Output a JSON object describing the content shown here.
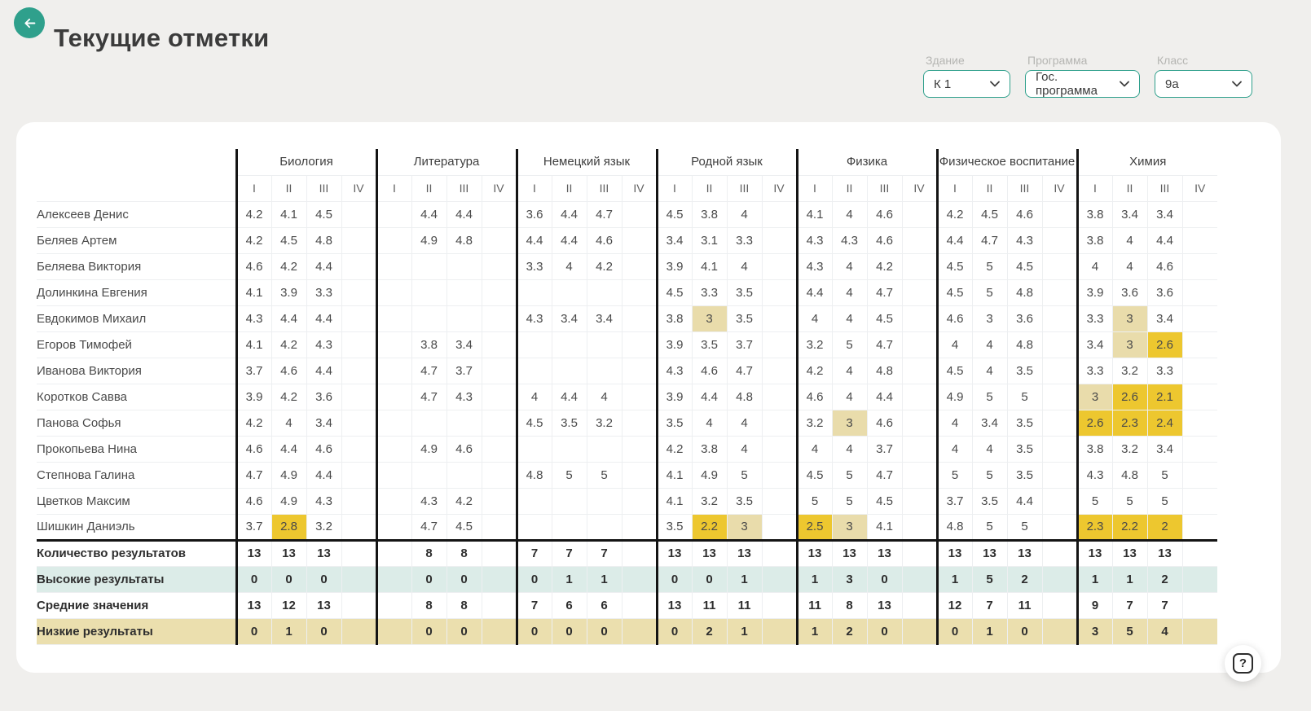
{
  "page": {
    "title": "Текущие отметки",
    "help_label": "?"
  },
  "colors": {
    "accent": "#2fa08c",
    "highlight_low": "#edc72f",
    "highlight_warn": "#e9dcab",
    "summary_high_bg": "#dcece8",
    "summary_low_bg": "#ebdfae"
  },
  "filters": {
    "building": {
      "label": "Здание",
      "value": "К 1"
    },
    "program": {
      "label": "Программа",
      "value": "Гос. программа"
    },
    "class": {
      "label": "Класс",
      "value": "9а"
    }
  },
  "table": {
    "quarters": [
      "I",
      "II",
      "III",
      "IV"
    ],
    "subjects": [
      "Биология",
      "Литература",
      "Немецкий язык",
      "Родной язык",
      "Физика",
      "Физическое воспитание",
      "Химия"
    ],
    "students": [
      {
        "name": "Алексеев Денис",
        "grades": [
          [
            "4.2",
            "4.1",
            "4.5",
            ""
          ],
          [
            "",
            "4.4",
            "4.4",
            ""
          ],
          [
            "3.6",
            "4.4",
            "4.7",
            ""
          ],
          [
            "4.5",
            "3.8",
            "4",
            ""
          ],
          [
            "4.1",
            "4",
            "4.6",
            ""
          ],
          [
            "4.2",
            "4.5",
            "4.6",
            ""
          ],
          [
            "3.8",
            "3.4",
            "3.4",
            ""
          ]
        ]
      },
      {
        "name": "Беляев Артем",
        "grades": [
          [
            "4.2",
            "4.5",
            "4.8",
            ""
          ],
          [
            "",
            "4.9",
            "4.8",
            ""
          ],
          [
            "4.4",
            "4.4",
            "4.6",
            ""
          ],
          [
            "3.4",
            "3.1",
            "3.3",
            ""
          ],
          [
            "4.3",
            "4.3",
            "4.6",
            ""
          ],
          [
            "4.4",
            "4.7",
            "4.3",
            ""
          ],
          [
            "3.8",
            "4",
            "4.4",
            ""
          ]
        ]
      },
      {
        "name": "Беляева Виктория",
        "grades": [
          [
            "4.6",
            "4.2",
            "4.4",
            ""
          ],
          [
            "",
            "",
            "",
            ""
          ],
          [
            "3.3",
            "4",
            "4.2",
            ""
          ],
          [
            "3.9",
            "4.1",
            "4",
            ""
          ],
          [
            "4.3",
            "4",
            "4.2",
            ""
          ],
          [
            "4.5",
            "5",
            "4.5",
            ""
          ],
          [
            "4",
            "4",
            "4.6",
            ""
          ]
        ]
      },
      {
        "name": "Долинкина Евгения",
        "grades": [
          [
            "4.1",
            "3.9",
            "3.3",
            ""
          ],
          [
            "",
            "",
            "",
            ""
          ],
          [
            "",
            "",
            "",
            ""
          ],
          [
            "4.5",
            "3.3",
            "3.5",
            ""
          ],
          [
            "4.4",
            "4",
            "4.7",
            ""
          ],
          [
            "4.5",
            "5",
            "4.8",
            ""
          ],
          [
            "3.9",
            "3.6",
            "3.6",
            ""
          ]
        ]
      },
      {
        "name": "Евдокимов Михаил",
        "grades": [
          [
            "4.3",
            "4.4",
            "4.4",
            ""
          ],
          [
            "",
            "",
            "",
            ""
          ],
          [
            "4.3",
            "3.4",
            "3.4",
            ""
          ],
          [
            "3.8",
            {
              "v": "3",
              "hl": "warn"
            },
            "3.5",
            ""
          ],
          [
            "4",
            "4",
            "4.5",
            ""
          ],
          [
            "4.6",
            "3",
            "3.6",
            ""
          ],
          [
            "3.3",
            {
              "v": "3",
              "hl": "warn"
            },
            "3.4",
            ""
          ]
        ]
      },
      {
        "name": "Егоров Тимофей",
        "grades": [
          [
            "4.1",
            "4.2",
            "4.3",
            ""
          ],
          [
            "",
            "3.8",
            "3.4",
            ""
          ],
          [
            "",
            "",
            "",
            ""
          ],
          [
            "3.9",
            "3.5",
            "3.7",
            ""
          ],
          [
            "3.2",
            "5",
            "4.7",
            ""
          ],
          [
            "4",
            "4",
            "4.8",
            ""
          ],
          [
            "3.4",
            {
              "v": "3",
              "hl": "warn"
            },
            {
              "v": "2.6",
              "hl": "low"
            },
            ""
          ]
        ]
      },
      {
        "name": "Иванова Виктория",
        "grades": [
          [
            "3.7",
            "4.6",
            "4.4",
            ""
          ],
          [
            "",
            "4.7",
            "3.7",
            ""
          ],
          [
            "",
            "",
            "",
            ""
          ],
          [
            "4.3",
            "4.6",
            "4.7",
            ""
          ],
          [
            "4.2",
            "4",
            "4.8",
            ""
          ],
          [
            "4.5",
            "4",
            "3.5",
            ""
          ],
          [
            "3.3",
            "3.2",
            "3.3",
            ""
          ]
        ]
      },
      {
        "name": "Коротков Савва",
        "grades": [
          [
            "3.9",
            "4.2",
            "3.6",
            ""
          ],
          [
            "",
            "4.7",
            "4.3",
            ""
          ],
          [
            "4",
            "4.4",
            "4",
            ""
          ],
          [
            "3.9",
            "4.4",
            "4.8",
            ""
          ],
          [
            "4.6",
            "4",
            "4.4",
            ""
          ],
          [
            "4.9",
            "5",
            "5",
            ""
          ],
          [
            {
              "v": "3",
              "hl": "warn"
            },
            {
              "v": "2.6",
              "hl": "low"
            },
            {
              "v": "2.1",
              "hl": "low"
            },
            ""
          ]
        ]
      },
      {
        "name": "Панова Софья",
        "grades": [
          [
            "4.2",
            "4",
            "3.4",
            ""
          ],
          [
            "",
            "",
            "",
            ""
          ],
          [
            "4.5",
            "3.5",
            "3.2",
            ""
          ],
          [
            "3.5",
            "4",
            "4",
            ""
          ],
          [
            "3.2",
            {
              "v": "3",
              "hl": "warn"
            },
            "4.6",
            ""
          ],
          [
            "4",
            "3.4",
            "3.5",
            ""
          ],
          [
            {
              "v": "2.6",
              "hl": "low"
            },
            {
              "v": "2.3",
              "hl": "low"
            },
            {
              "v": "2.4",
              "hl": "low"
            },
            ""
          ]
        ]
      },
      {
        "name": "Прокопьева Нина",
        "grades": [
          [
            "4.6",
            "4.4",
            "4.6",
            ""
          ],
          [
            "",
            "4.9",
            "4.6",
            ""
          ],
          [
            "",
            "",
            "",
            ""
          ],
          [
            "4.2",
            "3.8",
            "4",
            ""
          ],
          [
            "4",
            "4",
            "3.7",
            ""
          ],
          [
            "4",
            "4",
            "3.5",
            ""
          ],
          [
            "3.8",
            "3.2",
            "3.4",
            ""
          ]
        ]
      },
      {
        "name": "Степнова Галина",
        "grades": [
          [
            "4.7",
            "4.9",
            "4.4",
            ""
          ],
          [
            "",
            "",
            "",
            ""
          ],
          [
            "4.8",
            "5",
            "5",
            ""
          ],
          [
            "4.1",
            "4.9",
            "5",
            ""
          ],
          [
            "4.5",
            "5",
            "4.7",
            ""
          ],
          [
            "5",
            "5",
            "3.5",
            ""
          ],
          [
            "4.3",
            "4.8",
            "5",
            ""
          ]
        ]
      },
      {
        "name": "Цветков Максим",
        "grades": [
          [
            "4.6",
            "4.9",
            "4.3",
            ""
          ],
          [
            "",
            "4.3",
            "4.2",
            ""
          ],
          [
            "",
            "",
            "",
            ""
          ],
          [
            "4.1",
            "3.2",
            "3.5",
            ""
          ],
          [
            "5",
            "5",
            "4.5",
            ""
          ],
          [
            "3.7",
            "3.5",
            "4.4",
            ""
          ],
          [
            "5",
            "5",
            "5",
            ""
          ]
        ]
      },
      {
        "name": "Шишкин Даниэль",
        "grades": [
          [
            "3.7",
            {
              "v": "2.8",
              "hl": "low"
            },
            "3.2",
            ""
          ],
          [
            "",
            "4.7",
            "4.5",
            ""
          ],
          [
            "",
            "",
            "",
            ""
          ],
          [
            "3.5",
            {
              "v": "2.2",
              "hl": "low"
            },
            {
              "v": "3",
              "hl": "warn"
            },
            ""
          ],
          [
            {
              "v": "2.5",
              "hl": "low"
            },
            {
              "v": "3",
              "hl": "warn"
            },
            "4.1",
            ""
          ],
          [
            "4.8",
            "5",
            "5",
            ""
          ],
          [
            {
              "v": "2.3",
              "hl": "low"
            },
            {
              "v": "2.2",
              "hl": "low"
            },
            {
              "v": "2",
              "hl": "low"
            },
            ""
          ]
        ]
      }
    ],
    "summary": [
      {
        "label": "Количество результатов",
        "style": "plain",
        "values": [
          [
            "13",
            "13",
            "13",
            ""
          ],
          [
            "",
            "8",
            "8",
            ""
          ],
          [
            "7",
            "7",
            "7",
            ""
          ],
          [
            "13",
            "13",
            "13",
            ""
          ],
          [
            "13",
            "13",
            "13",
            ""
          ],
          [
            "13",
            "13",
            "13",
            ""
          ],
          [
            "13",
            "13",
            "13",
            ""
          ]
        ]
      },
      {
        "label": "Высокие результаты",
        "style": "high",
        "values": [
          [
            "0",
            "0",
            "0",
            ""
          ],
          [
            "",
            "0",
            "0",
            ""
          ],
          [
            "0",
            "1",
            "1",
            ""
          ],
          [
            "0",
            "0",
            "1",
            ""
          ],
          [
            "1",
            "3",
            "0",
            ""
          ],
          [
            "1",
            "5",
            "2",
            ""
          ],
          [
            "1",
            "1",
            "2",
            ""
          ]
        ]
      },
      {
        "label": "Средние значения",
        "style": "plain",
        "values": [
          [
            "13",
            "12",
            "13",
            ""
          ],
          [
            "",
            "8",
            "8",
            ""
          ],
          [
            "7",
            "6",
            "6",
            ""
          ],
          [
            "13",
            "11",
            "11",
            ""
          ],
          [
            "11",
            "8",
            "13",
            ""
          ],
          [
            "12",
            "7",
            "11",
            ""
          ],
          [
            "9",
            "7",
            "7",
            ""
          ]
        ]
      },
      {
        "label": "Низкие результаты",
        "style": "low",
        "values": [
          [
            "0",
            "1",
            "0",
            ""
          ],
          [
            "",
            "0",
            "0",
            ""
          ],
          [
            "0",
            "0",
            "0",
            ""
          ],
          [
            "0",
            "2",
            "1",
            ""
          ],
          [
            "1",
            "2",
            "0",
            ""
          ],
          [
            "0",
            "1",
            "0",
            ""
          ],
          [
            "3",
            "5",
            "4",
            ""
          ]
        ]
      }
    ]
  }
}
